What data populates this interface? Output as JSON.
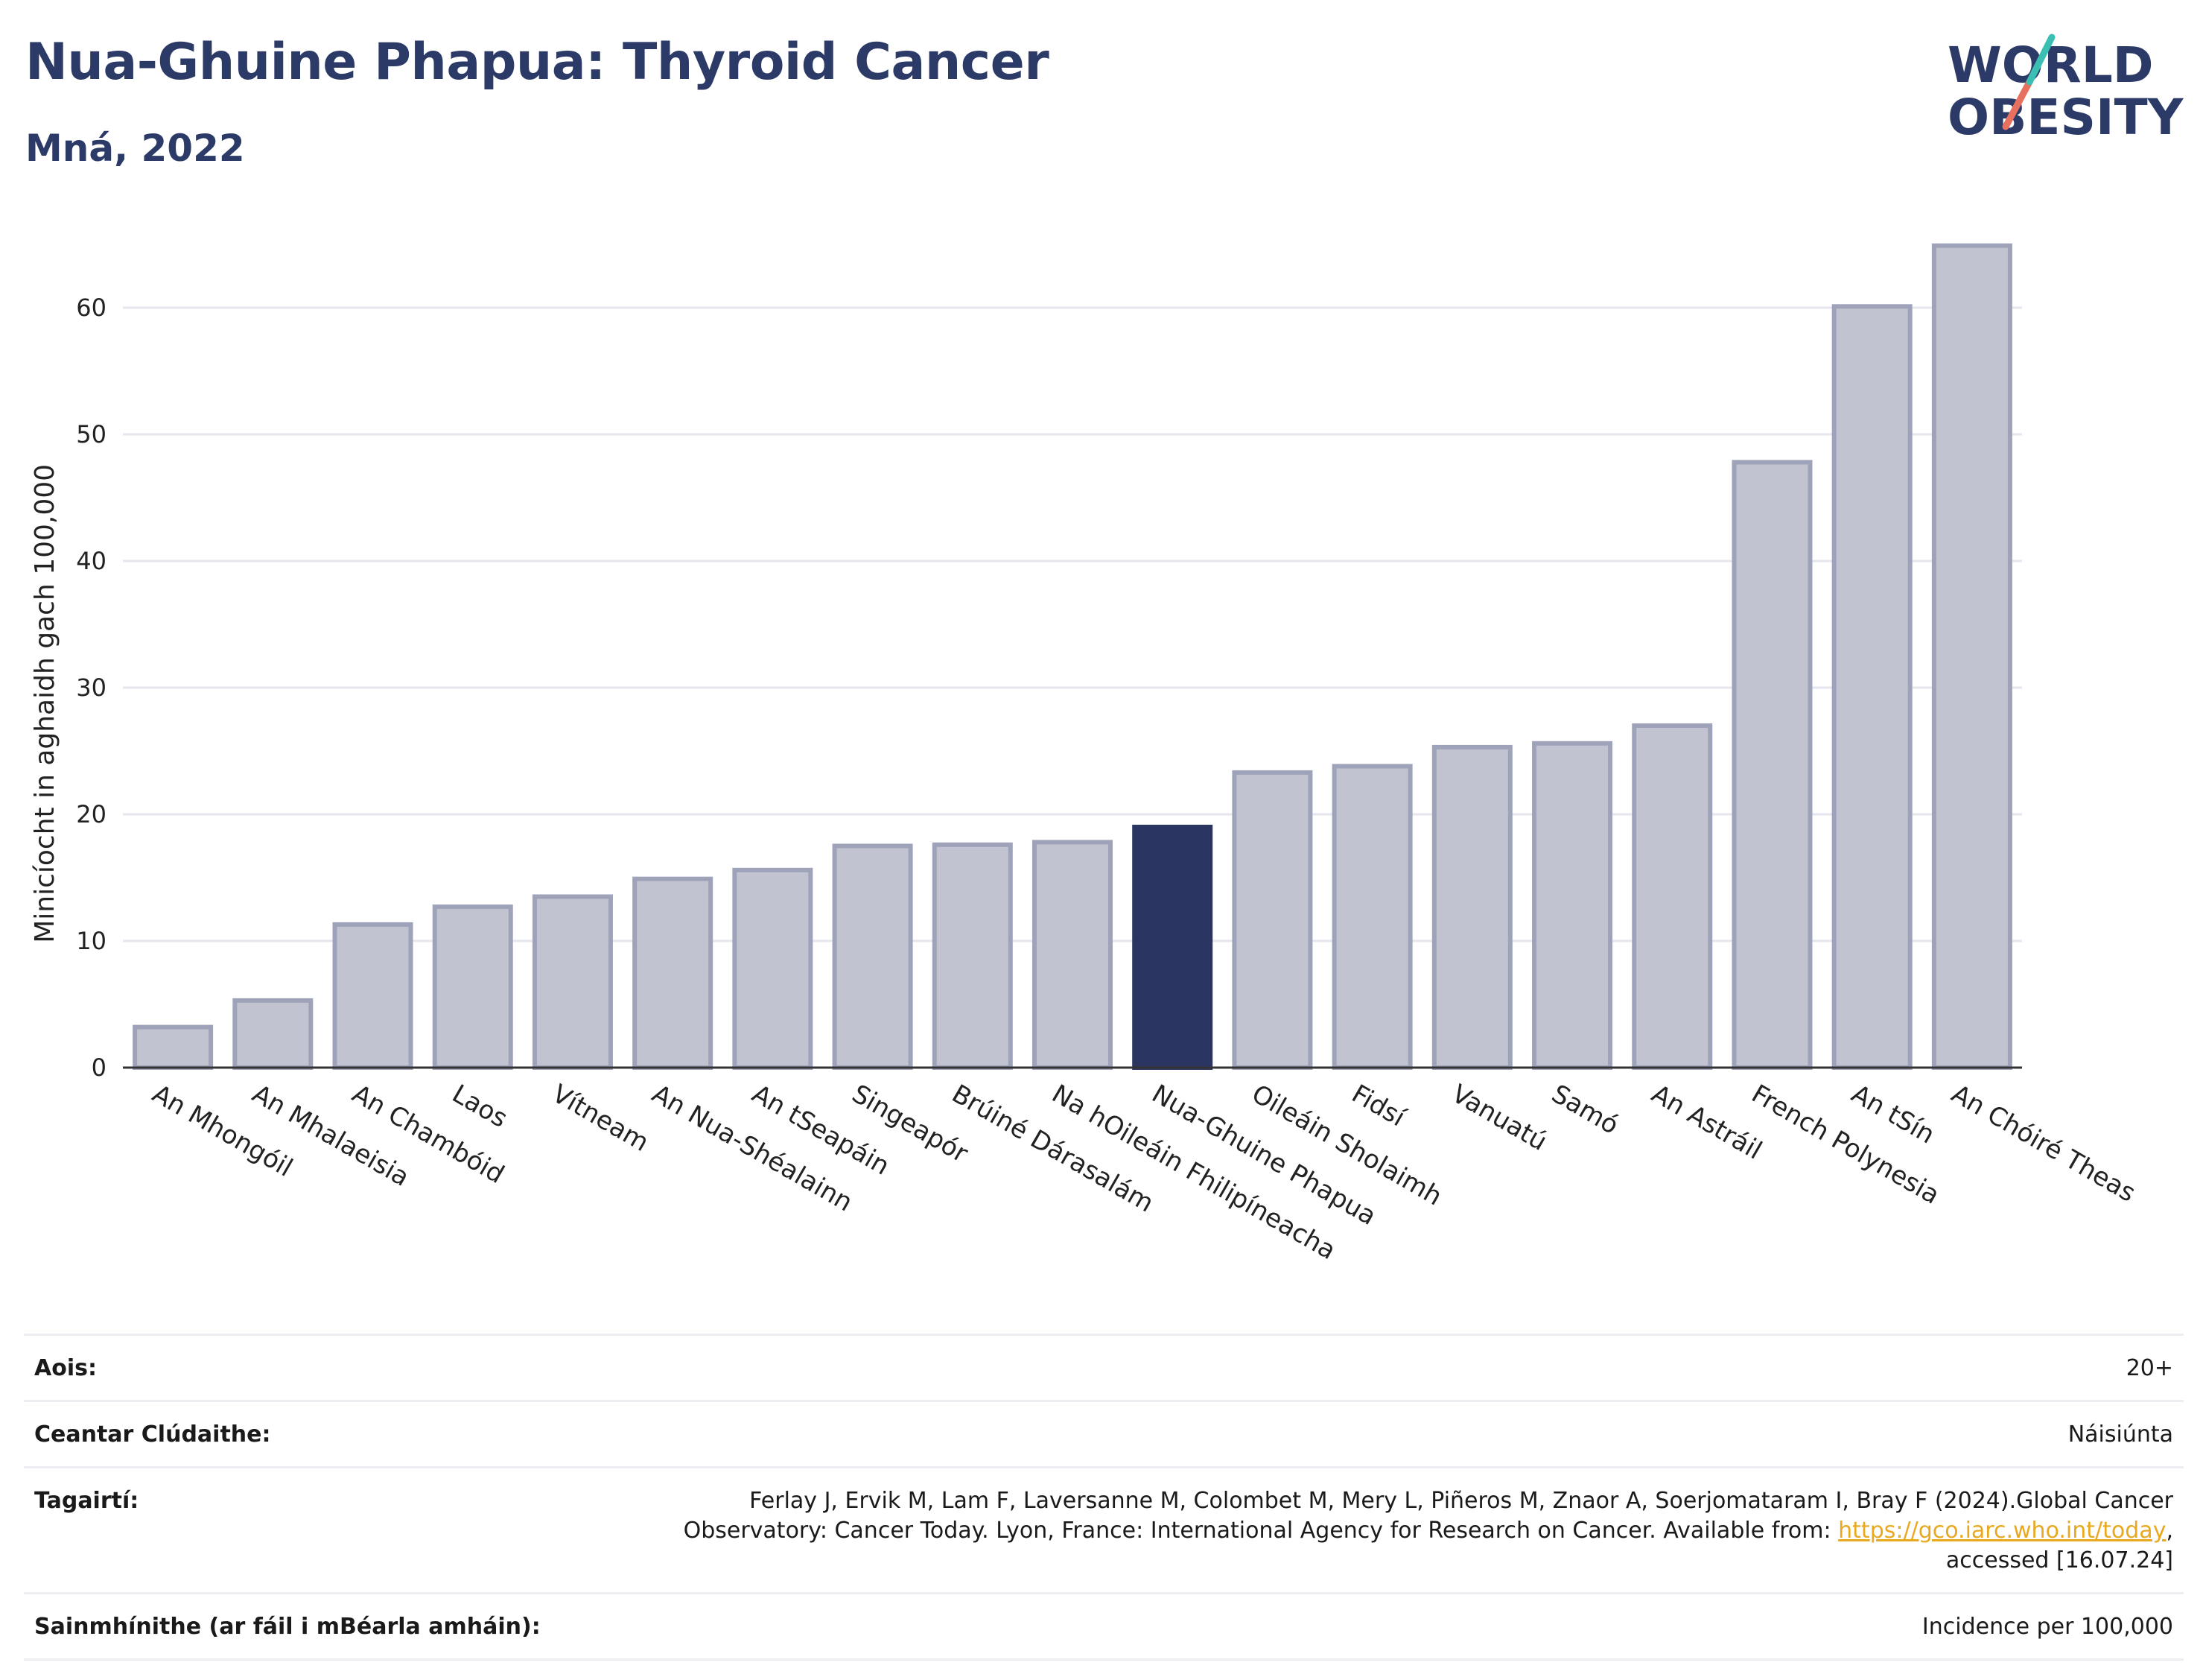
{
  "header": {
    "title": "Nua-Ghuine Phapua: Thyroid Cancer",
    "subtitle": "Mná, 2022"
  },
  "logo": {
    "line1": "WORLD",
    "line2": "OBESITY"
  },
  "colors": {
    "highlight_bar": "#2b3561",
    "other_bar_fill": "#c1c4d0",
    "other_bar_stroke": "#9ea3b9",
    "title": "#2b3a67",
    "grid": "#e6e6ee",
    "link": "#e8a920"
  },
  "chart_data": {
    "type": "bar",
    "ylabel": "Minicíocht in aghaidh gach 100,000",
    "ylim": [
      0,
      68
    ],
    "yticks": [
      0,
      10,
      20,
      30,
      40,
      50,
      60
    ],
    "grid": true,
    "highlight": "Nua-Ghuine Phapua",
    "categories": [
      "An Mhongóil",
      "An Mhalaeisia",
      "An Chambóid",
      "Laos",
      "Vítneam",
      "An Nua-Shéalainn",
      "An tSeapáin",
      "Singeapór",
      "Brúiné Dárasalám",
      "Na hOileáin Fhilipíneacha",
      "Nua-Ghuine Phapua",
      "Oileáin Sholaimh",
      "Fidsí",
      "Vanuatú",
      "Samó",
      "An Astráil",
      "French Polynesia",
      "An tSín",
      "An Chóiré Theas"
    ],
    "values": [
      3.2,
      5.3,
      11.3,
      12.7,
      13.5,
      14.9,
      15.6,
      17.5,
      17.6,
      17.8,
      19.0,
      23.3,
      23.8,
      25.3,
      25.6,
      27.0,
      47.8,
      60.1,
      64.9
    ]
  },
  "info": {
    "rows": [
      {
        "label": "Aois:",
        "value": "20+"
      },
      {
        "label": "Ceantar Clúdaithe:",
        "value": "Náisiúnta"
      },
      {
        "label": "Tagairtí:",
        "value_line1": "Ferlay J, Ervik M, Lam F, Laversanne M, Colombet M, Mery L, Piñeros M, Znaor A, Soerjomataram I, Bray F (2024).Global Cancer",
        "value_line2_pre": "Observatory: Cancer Today. Lyon, France: International Agency for Research on Cancer. Available from: ",
        "value_link": "https://gco.iarc.who.int/today",
        "value_line2_post": ",",
        "value_line3": "accessed [16.07.24]"
      },
      {
        "label": "Sainmhínithe (ar fáil i mBéarla amháin):",
        "value": "Incidence per 100,000"
      }
    ]
  }
}
